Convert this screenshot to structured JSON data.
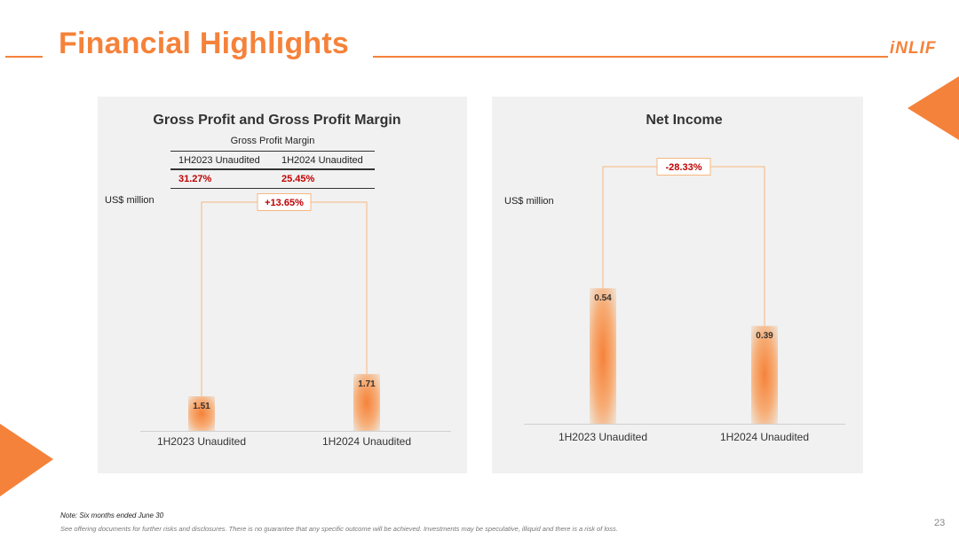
{
  "header": {
    "title": "Financial Highlights",
    "logo": "iNLIF"
  },
  "colors": {
    "accent": "#f5823a",
    "negative_text": "#c00000",
    "panel_bg": "#f1f1f1"
  },
  "gross_margin_table": {
    "title": "Gross Profit Margin",
    "columns": [
      "1H2023 Unaudited",
      "1H2024 Unaudited"
    ],
    "values": [
      "31.27%",
      "25.45%"
    ]
  },
  "chart_data": [
    {
      "type": "bar",
      "title": "Gross Profit and Gross Profit Margin",
      "ylabel": "US$ million",
      "categories": [
        "1H2023 Unaudited",
        "1H2024 Unaudited"
      ],
      "values": [
        1.51,
        1.71
      ],
      "value_labels": [
        "1.51",
        "1.71"
      ],
      "change_label": "+13.65%"
    },
    {
      "type": "bar",
      "title": "Net Income",
      "ylabel": "US$ million",
      "categories": [
        "1H2023 Unaudited",
        "1H2024 Unaudited"
      ],
      "values": [
        0.54,
        0.39
      ],
      "value_labels": [
        "0.54",
        "0.39"
      ],
      "change_label": "-28.33%"
    }
  ],
  "footer": {
    "note": "Note: Six months ended June 30",
    "disclaimer": "See offering documents for further risks and disclosures. There is no guarantee that any specific outcome will be achieved. Investments may be speculative, illiquid and there is a risk of loss.",
    "page_number": "23"
  }
}
